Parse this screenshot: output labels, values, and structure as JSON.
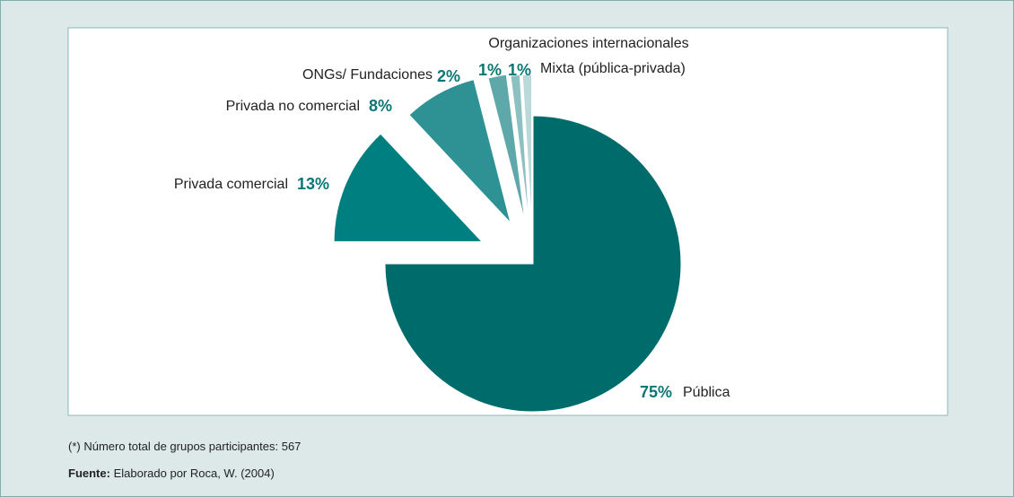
{
  "chart_data": {
    "type": "pie",
    "categories": [
      "Pública",
      "Privada comercial",
      "Privada no comercial",
      "ONGs/ Fundaciones",
      "Organizaciones internacionales",
      "Mixta (pública-privada)"
    ],
    "values": [
      75,
      13,
      8,
      2,
      1,
      1
    ],
    "value_labels": [
      "75%",
      "13%",
      "8%",
      "2%",
      "1%",
      "1%"
    ],
    "colors": [
      "#006b6b",
      "#007f80",
      "#2e9294",
      "#5fa8aa",
      "#8dc0c1",
      "#bcd9d9"
    ]
  },
  "footnote": "(*) Número total de grupos participantes: 567",
  "source_label": "Fuente:",
  "source_text": "Elaborado por Roca, W. (2004)"
}
